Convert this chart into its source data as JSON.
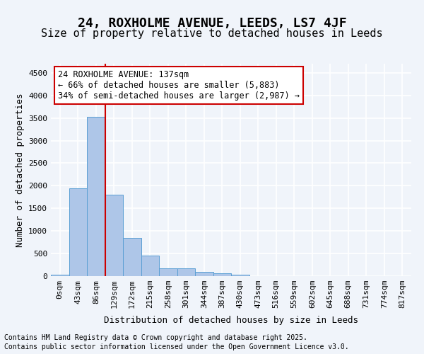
{
  "title_line1": "24, ROXHOLME AVENUE, LEEDS, LS7 4JF",
  "title_line2": "Size of property relative to detached houses in Leeds",
  "xlabel": "Distribution of detached houses by size in Leeds",
  "ylabel": "Number of detached properties",
  "bar_values": [
    30,
    1950,
    3520,
    1800,
    850,
    450,
    175,
    165,
    90,
    55,
    35,
    0,
    0,
    0,
    0,
    0,
    0,
    0,
    0,
    0
  ],
  "bin_labels": [
    "0sqm",
    "43sqm",
    "86sqm",
    "129sqm",
    "172sqm",
    "215sqm",
    "258sqm",
    "301sqm",
    "344sqm",
    "387sqm",
    "430sqm",
    "473sqm",
    "516sqm",
    "559sqm",
    "602sqm",
    "645sqm",
    "688sqm",
    "731sqm",
    "774sqm",
    "817sqm"
  ],
  "bar_color": "#aec6e8",
  "bar_edge_color": "#5a9fd4",
  "vline_color": "#cc0000",
  "vline_x": 2.5,
  "annotation_text": "24 ROXHOLME AVENUE: 137sqm\n← 66% of detached houses are smaller (5,883)\n34% of semi-detached houses are larger (2,987) →",
  "annotation_box_color": "#ffffff",
  "annotation_box_edge": "#cc0000",
  "ylim": [
    0,
    4700
  ],
  "yticks": [
    0,
    500,
    1000,
    1500,
    2000,
    2500,
    3000,
    3500,
    4000,
    4500
  ],
  "background_color": "#f0f4fa",
  "grid_color": "#ffffff",
  "footer_line1": "Contains HM Land Registry data © Crown copyright and database right 2025.",
  "footer_line2": "Contains public sector information licensed under the Open Government Licence v3.0.",
  "title_fontsize": 13,
  "subtitle_fontsize": 11,
  "axis_label_fontsize": 9,
  "tick_fontsize": 8,
  "annotation_fontsize": 8.5,
  "footer_fontsize": 7
}
